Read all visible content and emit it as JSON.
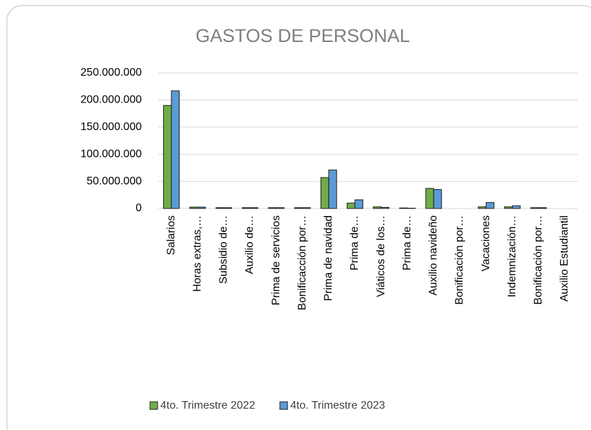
{
  "chart_data": {
    "type": "bar",
    "title": "GASTOS DE PERSONAL",
    "categories": [
      "Salarios",
      "Horas extras,…",
      "Subsidio de…",
      "Auxilio de…",
      "Prima de servicios",
      "Bonificacción por…",
      "Prima de navidad",
      "Prima de…",
      "Viáticos de los…",
      "Prima de…",
      "Auxilio navideño",
      "Bonificación por…",
      "Vacaciones",
      "Indemnización…",
      "Bonificación por…",
      "Auxilio Estudiantil"
    ],
    "series": [
      {
        "name": "4to. Trimestre 2022",
        "color": "#70ad47",
        "values": [
          190000000,
          2500000,
          1500000,
          1500000,
          1500000,
          1500000,
          57000000,
          10000000,
          3000000,
          1000000,
          37000000,
          0,
          3000000,
          3000000,
          1500000,
          0
        ]
      },
      {
        "name": "4to. Trimestre 2023",
        "color": "#5b9bd5",
        "values": [
          217000000,
          2500000,
          1500000,
          1500000,
          1500000,
          1500000,
          71000000,
          16000000,
          2000000,
          500000,
          35000000,
          0,
          11000000,
          5000000,
          1500000,
          0
        ]
      }
    ],
    "ylim": [
      0,
      250000000
    ],
    "yticks": [
      0,
      {
        "value": 50000000,
        "label": "50.000.000"
      },
      {
        "value": 100000000,
        "label": "100.000.000"
      },
      {
        "value": 150000000,
        "label": "150.000.000"
      },
      {
        "value": 200000000,
        "label": "200.000.000"
      },
      {
        "value": 250000000,
        "label": "250.000.000"
      }
    ],
    "grid": true,
    "legend": "bottom"
  }
}
